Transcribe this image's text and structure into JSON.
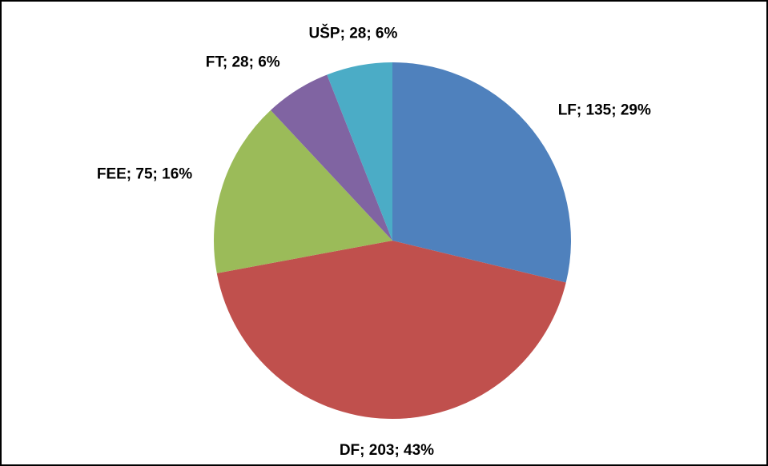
{
  "chart_data": {
    "type": "pie",
    "categories": [
      "LF",
      "DF",
      "FEE",
      "FT",
      "UŠP"
    ],
    "values": [
      135,
      203,
      75,
      28,
      28
    ],
    "value_labels": [
      "LF; 135; 29%",
      "DF; 203; 43%",
      "FEE; 75; 16%",
      "FT; 28; 6%",
      "UŠP; 28; 6%"
    ],
    "colors": [
      "#4f81bd",
      "#c0504d",
      "#9bbb59",
      "#8064a2",
      "#4bacc6"
    ]
  }
}
